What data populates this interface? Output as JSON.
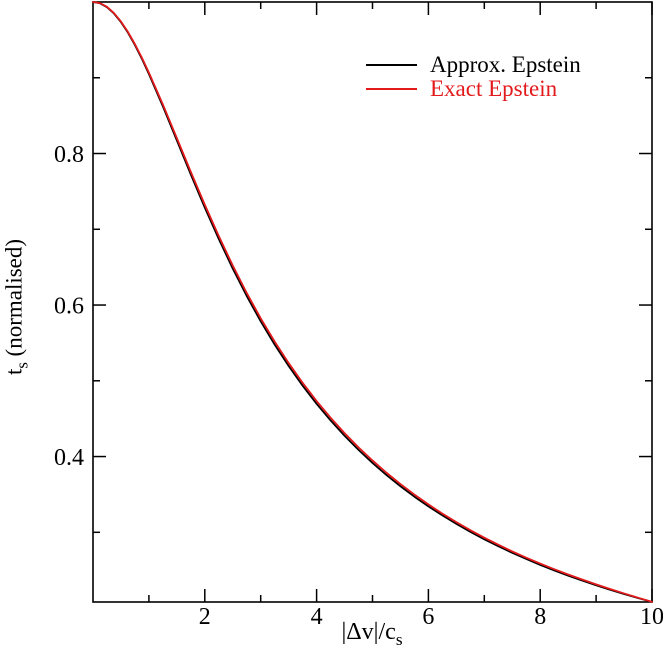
{
  "figure": {
    "background": "#ffffff",
    "frame_color": "#000000"
  },
  "legend": {
    "position": "upper right",
    "items": [
      {
        "label": "Approx. Epstein",
        "color": "#000000"
      },
      {
        "label": "Exact Epstein",
        "color": "#e31a1c"
      }
    ]
  },
  "axes": {
    "x": {
      "label_main": "|Δv|/c",
      "label_sub": "s",
      "range": [
        0,
        10
      ],
      "ticks_major": [
        2,
        4,
        6,
        8,
        10
      ],
      "ticks_minor": [
        1,
        3,
        5,
        7,
        9
      ],
      "tick_labels": [
        "2",
        "4",
        "6",
        "8",
        "10"
      ]
    },
    "y": {
      "label_main": "t",
      "label_sub": "s",
      "label_rest": " (normalised)",
      "range": [
        0.208,
        1.0
      ],
      "ticks_major": [
        0.4,
        0.6,
        0.8
      ],
      "ticks_minor": [
        0.3,
        0.5,
        0.7,
        0.9
      ],
      "tick_labels": [
        "0.4",
        "0.6",
        "0.8"
      ]
    }
  },
  "chart_data": {
    "type": "line",
    "title": "",
    "xlabel": "|Δv|/c_s",
    "ylabel": "t_s (normalised)",
    "xlim": [
      0,
      10
    ],
    "ylim": [
      0.208,
      1.0
    ],
    "grid": false,
    "legend_position": "upper right",
    "x": [
      0,
      0.125,
      0.25,
      0.375,
      0.5,
      0.625,
      0.75,
      0.875,
      1,
      1.25,
      1.5,
      1.75,
      2,
      2.25,
      2.5,
      2.75,
      3,
      3.25,
      3.5,
      3.75,
      4,
      4.25,
      4.5,
      4.75,
      5,
      5.25,
      5.5,
      5.75,
      6,
      6.25,
      6.5,
      6.75,
      7,
      7.25,
      7.5,
      7.75,
      8,
      8.25,
      8.5,
      8.75,
      9,
      9.25,
      9.5,
      9.75,
      10
    ],
    "series": [
      {
        "name": "Approx. Epstein",
        "color": "#000000",
        "values": [
          1.0,
          0.9983,
          0.9932,
          0.9848,
          0.9735,
          0.9595,
          0.9431,
          0.9249,
          0.905,
          0.8622,
          0.8173,
          0.7723,
          0.7286,
          0.6871,
          0.6481,
          0.6119,
          0.5785,
          0.5477,
          0.5195,
          0.4935,
          0.4696,
          0.4477,
          0.4274,
          0.4088,
          0.3916,
          0.3756,
          0.3608,
          0.347,
          0.3342,
          0.3223,
          0.3111,
          0.3006,
          0.2908,
          0.2816,
          0.2729,
          0.2648,
          0.257,
          0.2497,
          0.2428,
          0.2363,
          0.2301,
          0.2242,
          0.2186,
          0.2132,
          0.2081
        ]
      },
      {
        "name": "Exact Epstein",
        "color": "#e31a1c",
        "values": [
          1.0,
          0.9985,
          0.9936,
          0.9854,
          0.9743,
          0.9605,
          0.9444,
          0.9264,
          0.9068,
          0.8647,
          0.8203,
          0.7758,
          0.7324,
          0.6911,
          0.6521,
          0.6159,
          0.5825,
          0.5517,
          0.5234,
          0.4973,
          0.4733,
          0.4513,
          0.4309,
          0.4121,
          0.3948,
          0.3786,
          0.3637,
          0.3498,
          0.3368,
          0.3247,
          0.3134,
          0.3028,
          0.2929,
          0.2836,
          0.2748,
          0.2665,
          0.2587,
          0.2513,
          0.2443,
          0.2377,
          0.2313,
          0.2252,
          0.2193,
          0.2137,
          0.2081
        ]
      }
    ]
  }
}
